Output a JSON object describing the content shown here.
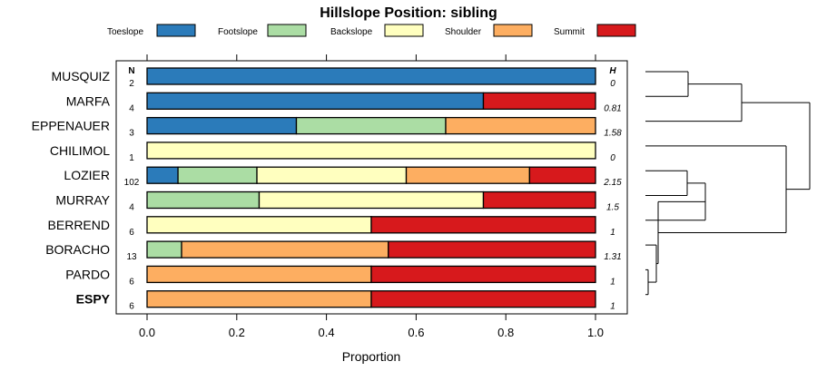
{
  "chart_data": {
    "type": "bar",
    "title": "Hillslope Position: sibling",
    "xlabel": "Proportion",
    "xlim": [
      0,
      1
    ],
    "xticks": [
      "0.0",
      "0.2",
      "0.4",
      "0.6",
      "0.8",
      "1.0"
    ],
    "n_header": "N",
    "h_header": "H",
    "legend": [
      {
        "name": "Toeslope",
        "color": "#2b7bba"
      },
      {
        "name": "Footslope",
        "color": "#abdda4"
      },
      {
        "name": "Backslope",
        "color": "#ffffbf"
      },
      {
        "name": "Shoulder",
        "color": "#fdae61"
      },
      {
        "name": "Summit",
        "color": "#d7191c"
      }
    ],
    "rows": [
      {
        "name": "MUSQUIZ",
        "n": "2",
        "h": "0",
        "bold": false,
        "values": [
          1.0,
          0,
          0,
          0,
          0
        ]
      },
      {
        "name": "MARFA",
        "n": "4",
        "h": "0.81",
        "bold": false,
        "values": [
          0.75,
          0,
          0,
          0,
          0.25
        ]
      },
      {
        "name": "EPPENAUER",
        "n": "3",
        "h": "1.58",
        "bold": false,
        "values": [
          0.333,
          0.333,
          0,
          0.334,
          0
        ]
      },
      {
        "name": "CHILIMOL",
        "n": "1",
        "h": "0",
        "bold": false,
        "values": [
          0,
          0,
          1.0,
          0,
          0
        ]
      },
      {
        "name": "LOZIER",
        "n": "102",
        "h": "2.15",
        "bold": false,
        "values": [
          0.069,
          0.176,
          0.333,
          0.275,
          0.147
        ]
      },
      {
        "name": "MURRAY",
        "n": "4",
        "h": "1.5",
        "bold": false,
        "values": [
          0,
          0.25,
          0.5,
          0,
          0.25
        ]
      },
      {
        "name": "BERREND",
        "n": "6",
        "h": "1",
        "bold": false,
        "values": [
          0,
          0,
          0.5,
          0,
          0.5
        ]
      },
      {
        "name": "BORACHO",
        "n": "13",
        "h": "1.31",
        "bold": false,
        "values": [
          0,
          0.077,
          0,
          0.461,
          0.462
        ]
      },
      {
        "name": "PARDO",
        "n": "6",
        "h": "1",
        "bold": false,
        "values": [
          0,
          0,
          0,
          0.5,
          0.5
        ]
      },
      {
        "name": "ESPY",
        "n": "6",
        "h": "1",
        "bold": true,
        "values": [
          0,
          0,
          0,
          0.5,
          0.5
        ]
      }
    ]
  }
}
